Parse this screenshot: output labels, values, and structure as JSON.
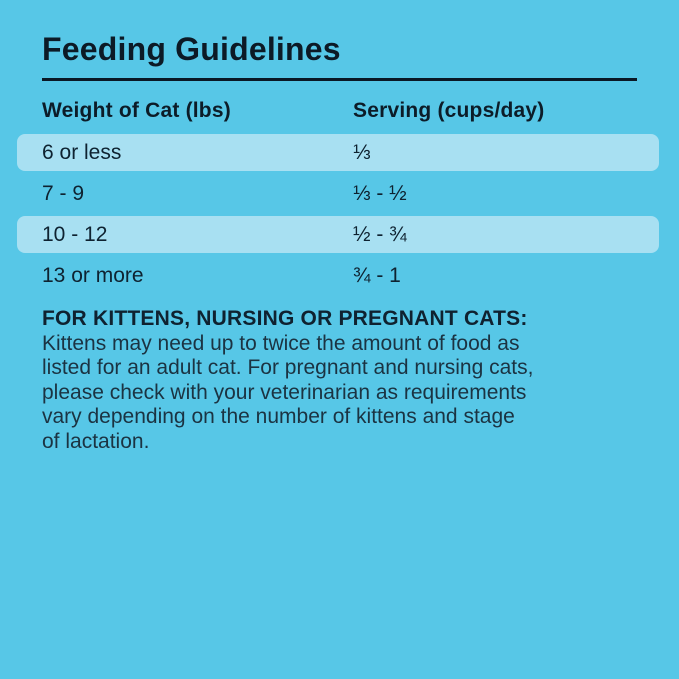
{
  "page": {
    "background_color": "#57C7E7",
    "highlight_row_color": "#A8E0F2",
    "text_color": "#0E1E2A"
  },
  "title": "Feeding Guidelines",
  "table": {
    "columns": [
      "Weight of Cat (lbs)",
      "Serving (cups/day)"
    ],
    "rows": [
      {
        "weight": "6 or less",
        "serving": "⅓",
        "highlighted": true
      },
      {
        "weight": "7 - 9",
        "serving": "⅓ - ½",
        "highlighted": false
      },
      {
        "weight": "10 - 12",
        "serving": "½ - ¾",
        "highlighted": true
      },
      {
        "weight": "13 or more",
        "serving": "¾ - 1",
        "highlighted": false
      }
    ]
  },
  "note": {
    "heading": "FOR KITTENS, NURSING OR PREGNANT CATS:",
    "lines": [
      "Kittens may need up to twice the amount of food as",
      "listed for an adult cat. For pregnant and nursing cats,",
      "please check with your veterinarian as requirements",
      "vary depending on the number of kittens and stage",
      "of lactation."
    ]
  }
}
